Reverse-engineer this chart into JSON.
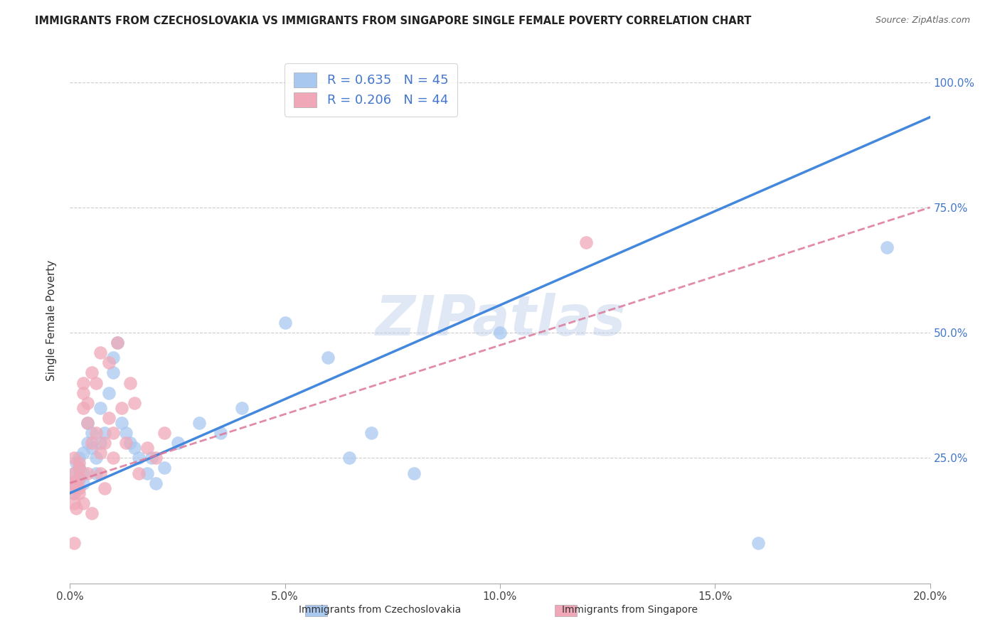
{
  "title": "IMMIGRANTS FROM CZECHOSLOVAKIA VS IMMIGRANTS FROM SINGAPORE SINGLE FEMALE POVERTY CORRELATION CHART",
  "source": "Source: ZipAtlas.com",
  "ylabel": "Single Female Poverty",
  "watermark": "ZIPatlas",
  "xlim": [
    0.0,
    0.2
  ],
  "ylim": [
    0.0,
    1.05
  ],
  "xtick_labels": [
    "0.0%",
    "5.0%",
    "10.0%",
    "15.0%",
    "20.0%"
  ],
  "xtick_vals": [
    0.0,
    0.05,
    0.1,
    0.15,
    0.2
  ],
  "ytick_labels": [
    "25.0%",
    "50.0%",
    "75.0%",
    "100.0%"
  ],
  "ytick_vals": [
    0.25,
    0.5,
    0.75,
    1.0
  ],
  "R_czecho": 0.635,
  "N_czecho": 45,
  "R_singapore": 0.206,
  "N_singapore": 44,
  "color_czecho": "#a8c8f0",
  "color_singapore": "#f0a8b8",
  "line_czecho": "#4488dd",
  "line_singapore": "#dd7799",
  "legend_text_color": "#4477cc",
  "czecho_x": [
    0.0005,
    0.001,
    0.001,
    0.0015,
    0.0015,
    0.002,
    0.002,
    0.002,
    0.003,
    0.003,
    0.003,
    0.004,
    0.004,
    0.005,
    0.005,
    0.006,
    0.006,
    0.007,
    0.007,
    0.008,
    0.009,
    0.01,
    0.01,
    0.011,
    0.012,
    0.013,
    0.014,
    0.015,
    0.016,
    0.018,
    0.019,
    0.02,
    0.022,
    0.025,
    0.03,
    0.035,
    0.04,
    0.05,
    0.06,
    0.065,
    0.07,
    0.08,
    0.1,
    0.16,
    0.19
  ],
  "czecho_y": [
    0.2,
    0.22,
    0.18,
    0.24,
    0.19,
    0.25,
    0.21,
    0.23,
    0.26,
    0.22,
    0.2,
    0.28,
    0.32,
    0.3,
    0.27,
    0.25,
    0.22,
    0.35,
    0.28,
    0.3,
    0.38,
    0.45,
    0.42,
    0.48,
    0.32,
    0.3,
    0.28,
    0.27,
    0.25,
    0.22,
    0.25,
    0.2,
    0.23,
    0.28,
    0.32,
    0.3,
    0.35,
    0.52,
    0.45,
    0.25,
    0.3,
    0.22,
    0.5,
    0.08,
    0.67
  ],
  "singapore_x": [
    0.0005,
    0.001,
    0.001,
    0.001,
    0.001,
    0.0015,
    0.0015,
    0.002,
    0.002,
    0.002,
    0.002,
    0.002,
    0.003,
    0.003,
    0.003,
    0.003,
    0.004,
    0.004,
    0.004,
    0.005,
    0.005,
    0.005,
    0.006,
    0.006,
    0.007,
    0.007,
    0.007,
    0.008,
    0.008,
    0.009,
    0.009,
    0.01,
    0.01,
    0.011,
    0.012,
    0.013,
    0.014,
    0.015,
    0.016,
    0.018,
    0.02,
    0.022,
    0.12,
    0.001
  ],
  "singapore_y": [
    0.2,
    0.22,
    0.18,
    0.16,
    0.25,
    0.2,
    0.15,
    0.23,
    0.18,
    0.21,
    0.24,
    0.19,
    0.38,
    0.35,
    0.4,
    0.16,
    0.36,
    0.32,
    0.22,
    0.28,
    0.14,
    0.42,
    0.3,
    0.4,
    0.22,
    0.26,
    0.46,
    0.28,
    0.19,
    0.33,
    0.44,
    0.3,
    0.25,
    0.48,
    0.35,
    0.28,
    0.4,
    0.36,
    0.22,
    0.27,
    0.25,
    0.3,
    0.68,
    0.08
  ],
  "czecho_line_x": [
    0.0,
    0.2
  ],
  "czecho_line_y": [
    0.18,
    0.93
  ],
  "singapore_line_x": [
    0.0,
    0.2
  ],
  "singapore_line_y": [
    0.2,
    0.75
  ]
}
